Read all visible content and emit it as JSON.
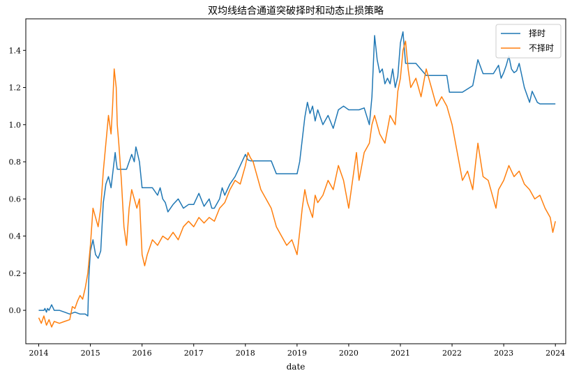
{
  "chart_data": {
    "type": "line",
    "title": "双均线结合通道突破择时和动态止损策略",
    "xlabel": "date",
    "ylabel": "",
    "xlim": [
      2013.75,
      2024.2
    ],
    "ylim": [
      -0.18,
      1.57
    ],
    "x_ticks": [
      "2014",
      "2015",
      "2016",
      "2017",
      "2018",
      "2019",
      "2020",
      "2021",
      "2022",
      "2023",
      "2024"
    ],
    "y_ticks": [
      "0.0",
      "0.2",
      "0.4",
      "0.6",
      "0.8",
      "1.0",
      "1.2",
      "1.4"
    ],
    "grid": false,
    "legend_position": "top-right",
    "series": [
      {
        "name": "择时",
        "color": "#1f77b4",
        "x": [
          2014.0,
          2014.1,
          2014.12,
          2014.15,
          2014.17,
          2014.2,
          2014.25,
          2014.3,
          2014.4,
          2014.5,
          2014.6,
          2014.7,
          2014.8,
          2014.9,
          2014.95,
          2014.97,
          2015.0,
          2015.05,
          2015.1,
          2015.15,
          2015.2,
          2015.25,
          2015.3,
          2015.35,
          2015.4,
          2015.45,
          2015.48,
          2015.5,
          2015.52,
          2015.55,
          2015.6,
          2015.7,
          2015.8,
          2015.85,
          2015.88,
          2015.9,
          2015.95,
          2016.0,
          2016.1,
          2016.2,
          2016.3,
          2016.35,
          2016.4,
          2016.45,
          2016.5,
          2016.6,
          2016.7,
          2016.8,
          2016.9,
          2017.0,
          2017.1,
          2017.2,
          2017.3,
          2017.35,
          2017.4,
          2017.5,
          2017.55,
          2017.6,
          2017.7,
          2017.8,
          2017.9,
          2018.0,
          2018.05,
          2018.1,
          2018.3,
          2018.5,
          2018.6,
          2018.8,
          2019.0,
          2019.05,
          2019.1,
          2019.15,
          2019.2,
          2019.25,
          2019.3,
          2019.35,
          2019.4,
          2019.5,
          2019.6,
          2019.7,
          2019.8,
          2019.9,
          2020.0,
          2020.1,
          2020.2,
          2020.3,
          2020.4,
          2020.45,
          2020.5,
          2020.55,
          2020.6,
          2020.65,
          2020.7,
          2020.75,
          2020.8,
          2020.85,
          2020.9,
          2020.95,
          2021.0,
          2021.05,
          2021.1,
          2021.15,
          2021.2,
          2021.3,
          2021.5,
          2021.7,
          2021.9,
          2021.95,
          2022.0,
          2022.2,
          2022.4,
          2022.45,
          2022.5,
          2022.6,
          2022.8,
          2022.9,
          2022.95,
          2023.0,
          2023.05,
          2023.1,
          2023.15,
          2023.2,
          2023.25,
          2023.3,
          2023.4,
          2023.5,
          2023.55,
          2023.6,
          2023.65,
          2023.7,
          2023.8,
          2024.0
        ],
        "y": [
          0.0,
          0.0,
          0.01,
          -0.01,
          0.01,
          0.0,
          0.03,
          0.0,
          0.0,
          -0.01,
          -0.02,
          -0.01,
          -0.02,
          -0.02,
          -0.03,
          0.18,
          0.32,
          0.38,
          0.3,
          0.28,
          0.32,
          0.58,
          0.68,
          0.72,
          0.66,
          0.78,
          0.85,
          0.8,
          0.76,
          0.76,
          0.76,
          0.76,
          0.84,
          0.8,
          0.88,
          0.86,
          0.8,
          0.66,
          0.66,
          0.66,
          0.62,
          0.66,
          0.6,
          0.58,
          0.53,
          0.57,
          0.6,
          0.55,
          0.57,
          0.57,
          0.63,
          0.56,
          0.6,
          0.55,
          0.55,
          0.6,
          0.66,
          0.62,
          0.68,
          0.72,
          0.78,
          0.84,
          0.81,
          0.805,
          0.805,
          0.805,
          0.735,
          0.735,
          0.735,
          0.8,
          0.92,
          1.04,
          1.12,
          1.06,
          1.1,
          1.02,
          1.08,
          1.0,
          1.05,
          0.98,
          1.08,
          1.1,
          1.08,
          1.08,
          1.08,
          1.09,
          1.0,
          1.15,
          1.48,
          1.35,
          1.28,
          1.3,
          1.22,
          1.25,
          1.22,
          1.3,
          1.2,
          1.26,
          1.44,
          1.5,
          1.33,
          1.33,
          1.33,
          1.33,
          1.265,
          1.265,
          1.265,
          1.175,
          1.175,
          1.175,
          1.21,
          1.28,
          1.35,
          1.275,
          1.275,
          1.32,
          1.25,
          1.28,
          1.32,
          1.37,
          1.3,
          1.28,
          1.29,
          1.33,
          1.2,
          1.12,
          1.18,
          1.15,
          1.12,
          1.112,
          1.112,
          1.112
        ]
      },
      {
        "name": "不择时",
        "color": "#ff7f0e",
        "x": [
          2014.0,
          2014.05,
          2014.1,
          2014.15,
          2014.2,
          2014.25,
          2014.3,
          2014.4,
          2014.5,
          2014.6,
          2014.65,
          2014.7,
          2014.75,
          2014.8,
          2014.85,
          2014.9,
          2014.95,
          2015.0,
          2015.05,
          2015.1,
          2015.15,
          2015.2,
          2015.25,
          2015.3,
          2015.35,
          2015.4,
          2015.43,
          2015.46,
          2015.5,
          2015.52,
          2015.55,
          2015.6,
          2015.65,
          2015.7,
          2015.75,
          2015.8,
          2015.85,
          2015.9,
          2015.95,
          2016.0,
          2016.05,
          2016.1,
          2016.2,
          2016.3,
          2016.4,
          2016.5,
          2016.6,
          2016.7,
          2016.8,
          2016.9,
          2017.0,
          2017.1,
          2017.2,
          2017.3,
          2017.4,
          2017.5,
          2017.6,
          2017.7,
          2017.8,
          2017.9,
          2018.0,
          2018.05,
          2018.1,
          2018.15,
          2018.2,
          2018.3,
          2018.4,
          2018.5,
          2018.6,
          2018.7,
          2018.8,
          2018.9,
          2019.0,
          2019.05,
          2019.1,
          2019.15,
          2019.2,
          2019.3,
          2019.35,
          2019.4,
          2019.5,
          2019.6,
          2019.7,
          2019.8,
          2019.9,
          2020.0,
          2020.1,
          2020.15,
          2020.2,
          2020.3,
          2020.4,
          2020.45,
          2020.5,
          2020.55,
          2020.6,
          2020.7,
          2020.8,
          2020.9,
          2020.95,
          2021.0,
          2021.05,
          2021.1,
          2021.15,
          2021.2,
          2021.3,
          2021.4,
          2021.5,
          2021.6,
          2021.7,
          2021.8,
          2021.9,
          2022.0,
          2022.1,
          2022.2,
          2022.3,
          2022.4,
          2022.45,
          2022.5,
          2022.6,
          2022.7,
          2022.8,
          2022.85,
          2022.9,
          2023.0,
          2023.1,
          2023.2,
          2023.3,
          2023.4,
          2023.5,
          2023.6,
          2023.7,
          2023.8,
          2023.9,
          2023.95,
          2024.0
        ],
        "y": [
          -0.04,
          -0.07,
          -0.03,
          -0.08,
          -0.05,
          -0.09,
          -0.06,
          -0.07,
          -0.06,
          -0.05,
          0.02,
          0.01,
          0.05,
          0.08,
          0.06,
          0.12,
          0.2,
          0.35,
          0.55,
          0.5,
          0.45,
          0.55,
          0.75,
          0.9,
          1.05,
          0.95,
          1.1,
          1.3,
          1.2,
          1.0,
          0.9,
          0.7,
          0.45,
          0.35,
          0.55,
          0.65,
          0.6,
          0.55,
          0.6,
          0.3,
          0.24,
          0.3,
          0.38,
          0.35,
          0.4,
          0.38,
          0.42,
          0.38,
          0.45,
          0.48,
          0.45,
          0.5,
          0.47,
          0.5,
          0.48,
          0.55,
          0.58,
          0.65,
          0.7,
          0.68,
          0.78,
          0.85,
          0.82,
          0.8,
          0.75,
          0.65,
          0.6,
          0.55,
          0.45,
          0.4,
          0.35,
          0.38,
          0.3,
          0.42,
          0.55,
          0.65,
          0.58,
          0.5,
          0.62,
          0.58,
          0.62,
          0.7,
          0.65,
          0.78,
          0.7,
          0.55,
          0.75,
          0.85,
          0.7,
          0.85,
          0.9,
          1.0,
          1.05,
          1.0,
          0.95,
          0.9,
          1.05,
          1.0,
          1.18,
          1.25,
          1.4,
          1.45,
          1.3,
          1.2,
          1.25,
          1.15,
          1.3,
          1.2,
          1.1,
          1.15,
          1.1,
          1.0,
          0.85,
          0.7,
          0.75,
          0.65,
          0.78,
          0.9,
          0.72,
          0.7,
          0.6,
          0.55,
          0.65,
          0.7,
          0.78,
          0.72,
          0.75,
          0.68,
          0.65,
          0.6,
          0.62,
          0.55,
          0.5,
          0.42,
          0.48
        ]
      }
    ]
  }
}
